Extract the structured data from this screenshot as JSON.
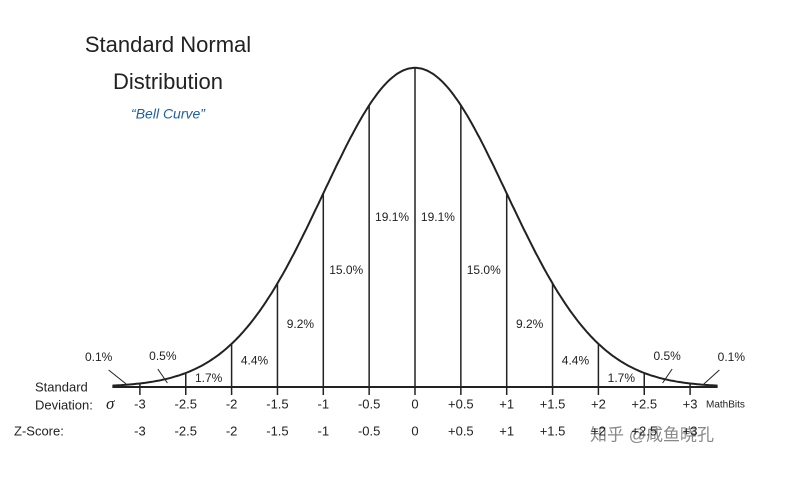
{
  "chart_data": {
    "type": "bell",
    "title": [
      "Standard Normal",
      "Distribution"
    ],
    "subtitle": "“Bell Curve”",
    "values": [
      0.1,
      0.5,
      1.7,
      4.4,
      9.2,
      15.0,
      19.1,
      19.1,
      15.0,
      9.2,
      4.4,
      1.7,
      0.5,
      0.1
    ],
    "value_labels": [
      "0.1%",
      "0.5%",
      "1.7%",
      "4.4%",
      "9.2%",
      "15.0%",
      "19.1%",
      "19.1%",
      "15.0%",
      "9.2%",
      "4.4%",
      "1.7%",
      "0.5%",
      "0.1%"
    ],
    "xlim": [
      -3.3,
      3.3
    ],
    "xticks": [
      -3,
      -2.5,
      -2,
      -1.5,
      -1,
      -0.5,
      0,
      {
        "value": 0.5,
        "label": "+0.5"
      },
      {
        "value": 1,
        "label": "+1"
      },
      {
        "value": 1.5,
        "label": "+1.5"
      },
      {
        "value": 2,
        "label": "+2"
      },
      {
        "value": 2.5,
        "label": "+2.5"
      },
      {
        "value": 3,
        "label": "+3"
      }
    ],
    "row_label_1": [
      "Standard",
      "Deviation:"
    ],
    "sigma": "σ",
    "row_label_2": "Z-Score:",
    "z_labels": [
      "-3",
      "-2.5",
      "-2",
      "-1.5",
      "-1",
      "-0.5",
      "0",
      "+0.5",
      "+1",
      "+1.5",
      "+2",
      "+2.5",
      "+3"
    ],
    "credit": "MathBits",
    "watermark": "知乎 @咸鱼晓孔",
    "color": "#222222"
  }
}
